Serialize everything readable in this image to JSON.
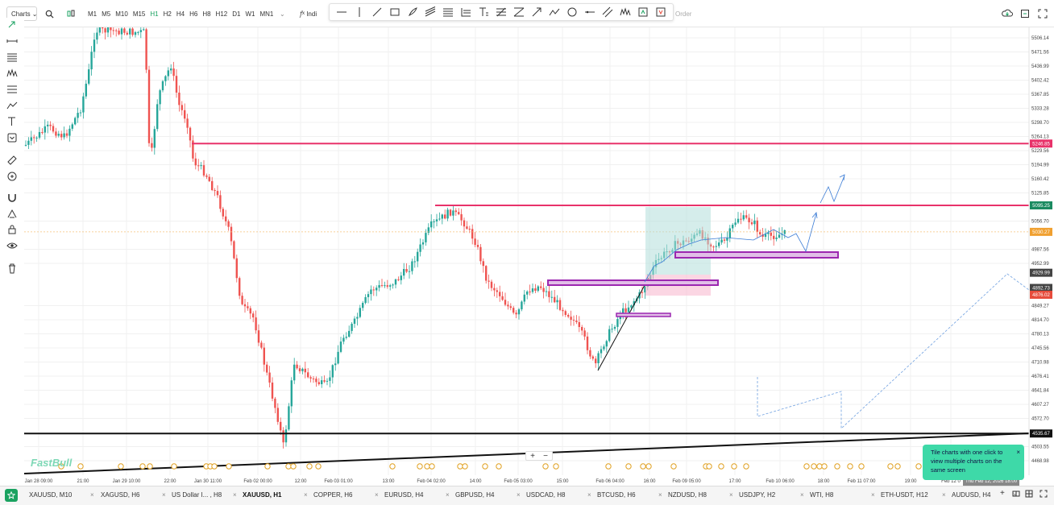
{
  "toolbar": {
    "charts_label": "Charts",
    "timeframes": [
      "M1",
      "M5",
      "M10",
      "M15",
      "H1",
      "H2",
      "H4",
      "H6",
      "H8",
      "H12",
      "D1",
      "W1",
      "MN1"
    ],
    "active_timeframe": "H1",
    "indicator_label": "Indi",
    "order_label": "Order"
  },
  "chart": {
    "price_labels": [
      "5506.14",
      "5471.56",
      "5436.99",
      "5402.42",
      "5367.85",
      "5333.28",
      "5298.70",
      "5264.13",
      "5229.56",
      "5194.99",
      "5160.42",
      "5125.85",
      "5056.70",
      "4987.56",
      "4952.99",
      "4849.27",
      "4814.70",
      "4780.13",
      "4745.56",
      "4710.98",
      "4676.41",
      "4641.84",
      "4607.27",
      "4572.70",
      "4503.55",
      "4468.98"
    ],
    "price_tags": [
      {
        "text": "5246.85",
        "color": "#e8326a"
      },
      {
        "text": "5095.25",
        "color": "#1a8a60"
      },
      {
        "text": "5030.27",
        "color": "#f0a030"
      },
      {
        "text": "4929.99",
        "color": "#444444"
      },
      {
        "text": "4892.73",
        "color": "#444444"
      },
      {
        "text": "4876.02",
        "color": "#e74c3c"
      },
      {
        "text": "4535.67",
        "color": "#111111"
      }
    ],
    "time_labels": [
      "Jan 28 09:00",
      "21:00",
      "Jan 29 10:00",
      "22:00",
      "Jan 30 11:00",
      "Feb 02 00:00",
      "12:00",
      "Feb 03 01:00",
      "13:00",
      "Feb 04 02:00",
      "14:00",
      "Feb 05 03:00",
      "15:00",
      "Feb 06 04:00",
      "16:00",
      "Feb 09 05:00",
      "17:00",
      "Feb 10 06:00",
      "18:00",
      "Feb 11 07:00",
      "19:00",
      "Feb 12 0"
    ],
    "time_cursor": "Thu Feb 12, 2026 18:00",
    "watermark": "FastBull"
  },
  "bottom_tabs": [
    "XAUUSD, M10",
    "XAGUSD, H6",
    "US Dollar I... , H8",
    "XAUUSD, H1",
    "COPPER, H6",
    "EURUSD, H4",
    "GBPUSD, H4",
    "USDCAD, H8",
    "BTCUSD, H6",
    "NZDUSD, H8",
    "USDJPY, H2",
    "WTI, H8",
    "ETH-USDT, H12",
    "AUDUSD, H4"
  ],
  "active_bottom_tab": "XAUUSD, H1",
  "toast": {
    "text": "Tile charts with one click to view multiple charts on the same screen",
    "close": "×"
  },
  "zoom_controls": {
    "plus": "+",
    "minus": "−"
  },
  "colors": {
    "up": "#26a69a",
    "down": "#ef5350",
    "accent": "#1aa260",
    "resistance": "#e8326a",
    "support_box": "#9c27b0"
  }
}
